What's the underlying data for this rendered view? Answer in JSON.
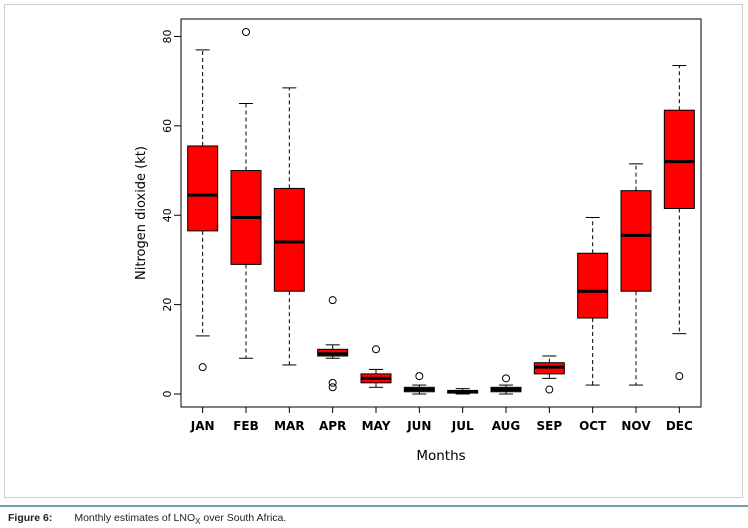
{
  "figure": {
    "caption_label": "Figure 6:",
    "caption_text_pre": "Monthly estimates of LNO",
    "caption_sub": "X",
    "caption_text_post": " over South Africa."
  },
  "chart_data": {
    "type": "boxplot",
    "title": "",
    "xlabel": "Months",
    "ylabel": "Nitrogen dioxide (kt)",
    "ylim": [
      0,
      81
    ],
    "yticks": [
      0,
      20,
      40,
      60,
      80
    ],
    "grid": false,
    "legend": "none",
    "box_fill": "#ff0000",
    "box_stroke": "#000000",
    "categories": [
      "JAN",
      "FEB",
      "MAR",
      "APR",
      "MAY",
      "JUN",
      "JUL",
      "AUG",
      "SEP",
      "OCT",
      "NOV",
      "DEC"
    ],
    "series": [
      {
        "label": "JAN",
        "whisker_low": 13,
        "q1": 36.5,
        "median": 44.5,
        "q3": 55.5,
        "whisker_high": 77,
        "outliers": [
          6
        ]
      },
      {
        "label": "FEB",
        "whisker_low": 8,
        "q1": 29,
        "median": 39.5,
        "q3": 50,
        "whisker_high": 65,
        "outliers": [
          81
        ]
      },
      {
        "label": "MAR",
        "whisker_low": 6.5,
        "q1": 23,
        "median": 34,
        "q3": 46,
        "whisker_high": 68.5,
        "outliers": []
      },
      {
        "label": "APR",
        "whisker_low": 8,
        "q1": 8.5,
        "median": 9,
        "q3": 10,
        "whisker_high": 11,
        "outliers": [
          21,
          2.5,
          1.5
        ]
      },
      {
        "label": "MAY",
        "whisker_low": 1.5,
        "q1": 2.5,
        "median": 3.5,
        "q3": 4.5,
        "whisker_high": 5.5,
        "outliers": [
          10
        ]
      },
      {
        "label": "JUN",
        "whisker_low": 0,
        "q1": 0.5,
        "median": 1,
        "q3": 1.5,
        "whisker_high": 2,
        "outliers": [
          4
        ]
      },
      {
        "label": "JUL",
        "whisker_low": 0,
        "q1": 0.2,
        "median": 0.5,
        "q3": 0.8,
        "whisker_high": 1.2,
        "outliers": []
      },
      {
        "label": "AUG",
        "whisker_low": 0,
        "q1": 0.5,
        "median": 1,
        "q3": 1.5,
        "whisker_high": 2,
        "outliers": [
          3.5
        ]
      },
      {
        "label": "SEP",
        "whisker_low": 3.5,
        "q1": 4.5,
        "median": 6,
        "q3": 7,
        "whisker_high": 8.5,
        "outliers": [
          1
        ]
      },
      {
        "label": "OCT",
        "whisker_low": 2,
        "q1": 17,
        "median": 23,
        "q3": 31.5,
        "whisker_high": 39.5,
        "outliers": []
      },
      {
        "label": "NOV",
        "whisker_low": 2,
        "q1": 23,
        "median": 35.5,
        "q3": 45.5,
        "whisker_high": 51.5,
        "outliers": []
      },
      {
        "label": "DEC",
        "whisker_low": 13.5,
        "q1": 41.5,
        "median": 52,
        "q3": 63.5,
        "whisker_high": 73.5,
        "outliers": [
          4
        ]
      }
    ]
  }
}
